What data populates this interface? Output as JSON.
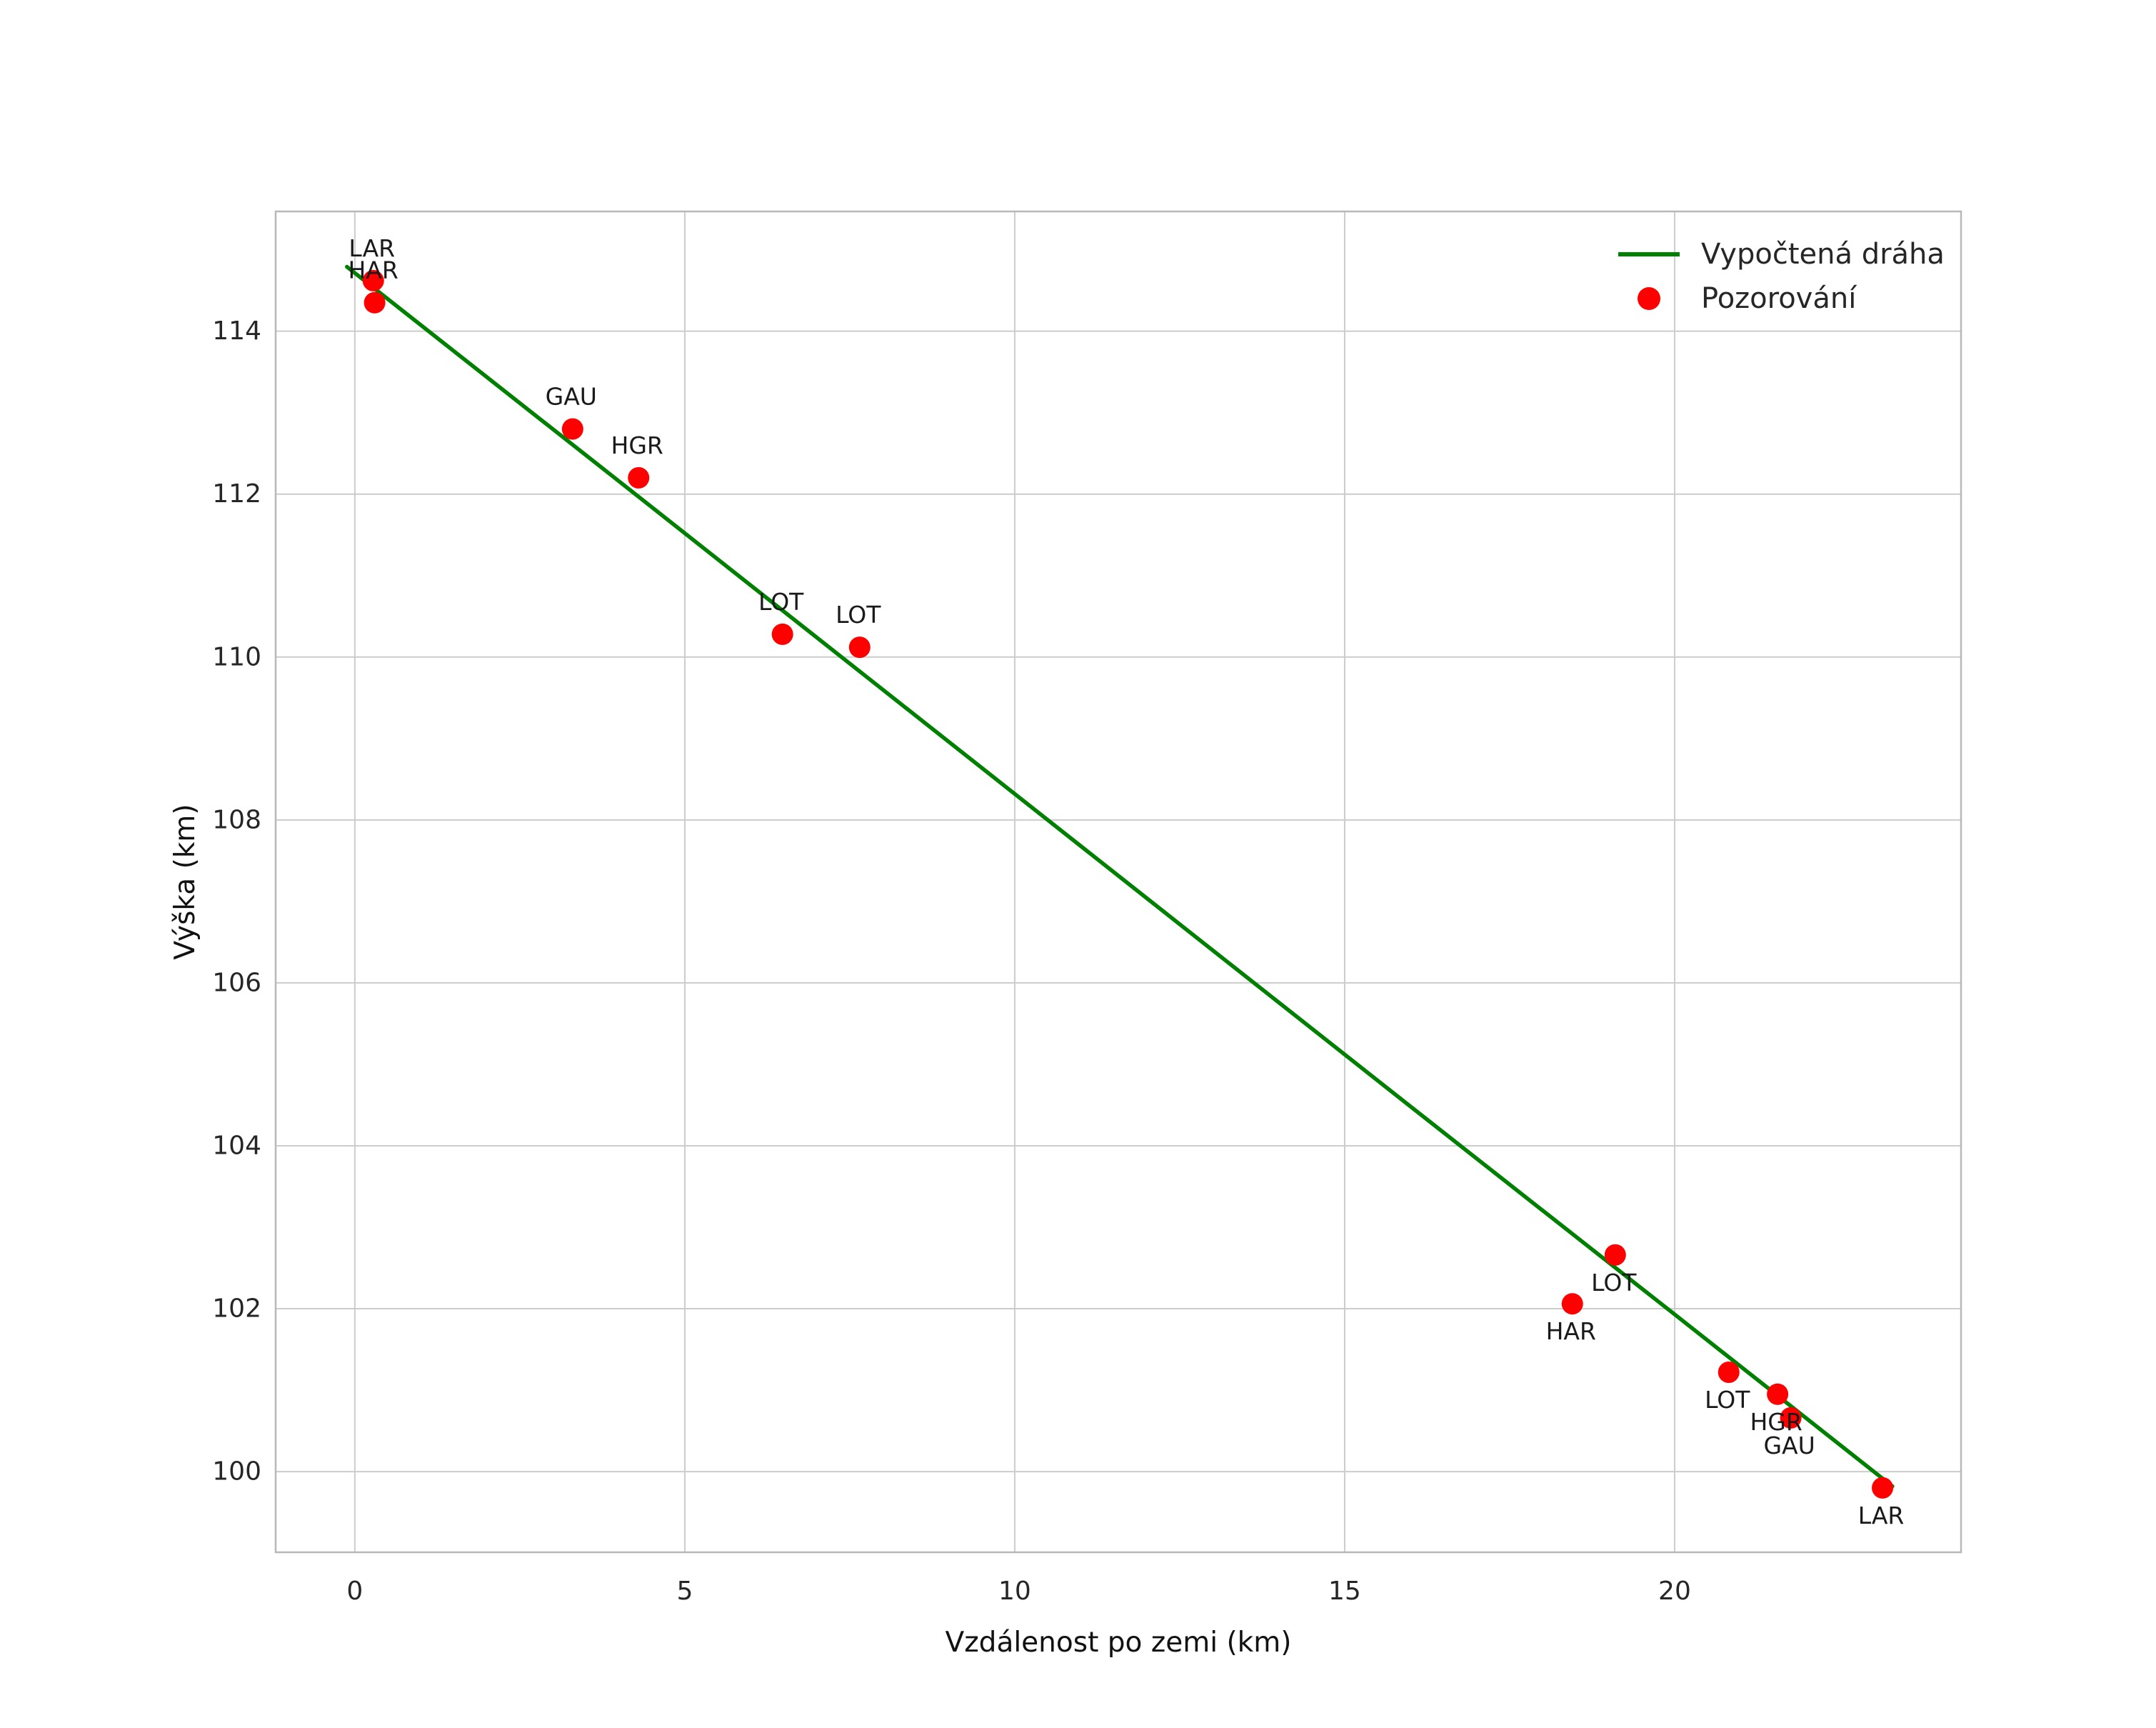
{
  "chart_data": {
    "type": "scatter",
    "title": "",
    "xlabel": "Vzdálenost po zemi (km)",
    "ylabel": "Výška (km)",
    "xlim": [
      -1.2,
      24.34
    ],
    "ylim": [
      99.01,
      115.47
    ],
    "grid": true,
    "xticks": [
      {
        "value": 0,
        "label": "0"
      },
      {
        "value": 5,
        "label": "5"
      },
      {
        "value": 10,
        "label": "10"
      },
      {
        "value": 15,
        "label": "15"
      },
      {
        "value": 20,
        "label": "20"
      }
    ],
    "yticks": [
      {
        "value": 100,
        "label": "100"
      },
      {
        "value": 102,
        "label": "102"
      },
      {
        "value": 104,
        "label": "104"
      },
      {
        "value": 106,
        "label": "106"
      },
      {
        "value": 108,
        "label": "108"
      },
      {
        "value": 110,
        "label": "110"
      },
      {
        "value": 112,
        "label": "112"
      },
      {
        "value": 114,
        "label": "114"
      }
    ],
    "legend": {
      "position": "upper right",
      "entries": [
        {
          "label": "Vypočtená dráha",
          "marker": "line",
          "color": "#008000"
        },
        {
          "label": "Pozorování",
          "marker": "point",
          "color": "#ff0000"
        }
      ]
    },
    "series": [
      {
        "name": "Vypočtená dráha",
        "type": "line",
        "color": "#008000",
        "points": [
          [
            -0.12,
            114.79
          ],
          [
            4,
            112.16
          ],
          [
            8,
            109.6
          ],
          [
            12,
            107.04
          ],
          [
            16,
            104.48
          ],
          [
            20,
            101.93
          ],
          [
            23.3,
            99.82
          ]
        ]
      },
      {
        "name": "Pozorování",
        "type": "scatter",
        "color": "#ff0000",
        "points": [
          {
            "x": 0.28,
            "y": 114.62,
            "label": "LAR",
            "label_pos": "above"
          },
          {
            "x": 0.3,
            "y": 114.35,
            "label": "HAR",
            "label_pos": "above"
          },
          {
            "x": 3.3,
            "y": 112.8,
            "label": "GAU",
            "label_pos": "above"
          },
          {
            "x": 4.3,
            "y": 112.2,
            "label": "HGR",
            "label_pos": "above"
          },
          {
            "x": 6.48,
            "y": 110.28,
            "label": "LOT",
            "label_pos": "above"
          },
          {
            "x": 7.65,
            "y": 110.12,
            "label": "LOT",
            "label_pos": "above"
          },
          {
            "x": 19.1,
            "y": 102.66,
            "label": "LOT",
            "label_pos": "below"
          },
          {
            "x": 18.45,
            "y": 102.06,
            "label": "HAR",
            "label_pos": "below"
          },
          {
            "x": 20.82,
            "y": 101.22,
            "label": "LOT",
            "label_pos": "below"
          },
          {
            "x": 21.56,
            "y": 100.95,
            "label": "HGR",
            "label_pos": "below"
          },
          {
            "x": 21.76,
            "y": 100.66,
            "label": "GAU",
            "label_pos": "below"
          },
          {
            "x": 23.15,
            "y": 99.8,
            "label": "LAR",
            "label_pos": "below"
          }
        ]
      }
    ]
  }
}
